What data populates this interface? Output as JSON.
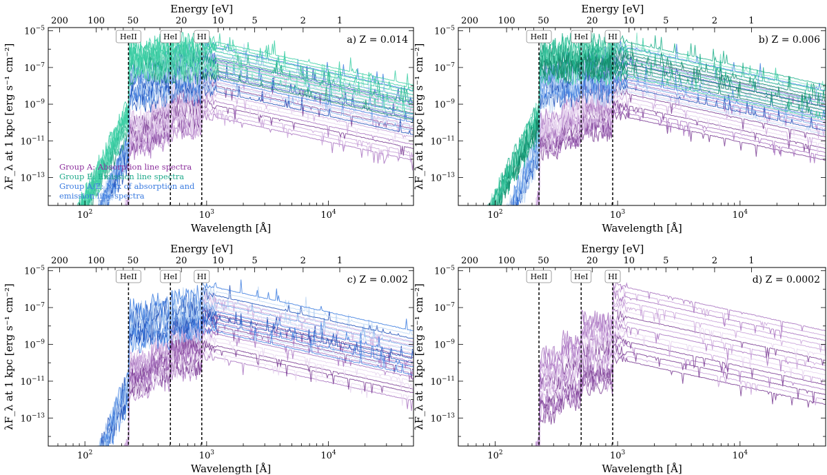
{
  "chart_data": [
    {
      "type": "line",
      "title": "a) Z = 0.014",
      "panel_label": "a) Z = 0.014",
      "xlabel": "Wavelength [Å]",
      "ylabel": "λF_λ at 1 kpc [erg s⁻¹ cm⁻²]",
      "top_xlabel": "Energy [eV]",
      "xscale": "log",
      "yscale": "log",
      "xlim": [
        50,
        50000
      ],
      "ylim": [
        3e-15,
        1.5e-05
      ],
      "groups": [
        "A",
        "AE",
        "E"
      ],
      "edge_lines": [
        {
          "label": "HeII",
          "x": 228
        },
        {
          "label": "HeI",
          "x": 504
        },
        {
          "label": "HI",
          "x": 912
        }
      ],
      "legend": [
        {
          "text": "Group A: Absorption line spectra",
          "color": "#8B2E9C"
        },
        {
          "text": "Group E: Emission line spectra",
          "color": "#1FA98A"
        },
        {
          "text": "Group A/E: Mix of absorption and emission line spectra",
          "color": "#3A7BE0"
        }
      ]
    },
    {
      "type": "line",
      "title": "b) Z = 0.006",
      "panel_label": "b) Z = 0.006",
      "xlabel": "Wavelength [Å]",
      "ylabel": "λF_λ at 1 kpc [erg s⁻¹ cm⁻²]",
      "top_xlabel": "Energy [eV]",
      "xscale": "log",
      "yscale": "log",
      "xlim": [
        50,
        50000
      ],
      "ylim": [
        3e-15,
        1.5e-05
      ],
      "groups": [
        "A",
        "AE",
        "E"
      ],
      "edge_lines": [
        {
          "label": "HeII",
          "x": 228
        },
        {
          "label": "HeI",
          "x": 504
        },
        {
          "label": "HI",
          "x": 912
        }
      ]
    },
    {
      "type": "line",
      "title": "c) Z = 0.002",
      "panel_label": "c) Z = 0.002",
      "xlabel": "Wavelength [Å]",
      "ylabel": "λF_λ at 1 kpc [erg s⁻¹ cm⁻²]",
      "top_xlabel": "Energy [eV]",
      "xscale": "log",
      "yscale": "log",
      "xlim": [
        50,
        50000
      ],
      "ylim": [
        3e-15,
        1.5e-05
      ],
      "groups": [
        "A",
        "AE"
      ],
      "edge_lines": [
        {
          "label": "HeII",
          "x": 228
        },
        {
          "label": "HeI",
          "x": 504
        },
        {
          "label": "HI",
          "x": 912
        }
      ]
    },
    {
      "type": "line",
      "title": "d) Z = 0.0002",
      "panel_label": "d) Z = 0.0002",
      "xlabel": "Wavelength [Å]",
      "ylabel": "λF_λ at 1 kpc [erg s⁻¹ cm⁻²]",
      "top_xlabel": "Energy [eV]",
      "xscale": "log",
      "yscale": "log",
      "xlim": [
        50,
        50000
      ],
      "ylim": [
        3e-15,
        1.5e-05
      ],
      "groups": [
        "A"
      ],
      "edge_lines": [
        {
          "label": "HeII",
          "x": 228
        },
        {
          "label": "HeI",
          "x": 504
        },
        {
          "label": "HI",
          "x": 912
        }
      ]
    }
  ],
  "axes": {
    "bottom_ticks": [
      {
        "value": 100,
        "mant": "10",
        "exp": "2"
      },
      {
        "value": 1000,
        "mant": "10",
        "exp": "3"
      },
      {
        "value": 10000,
        "mant": "10",
        "exp": "4"
      }
    ],
    "left_ticks": [
      {
        "value": 1e-05,
        "mant": "10",
        "exp": "−5"
      },
      {
        "value": 1e-07,
        "mant": "10",
        "exp": "−7"
      },
      {
        "value": 1e-09,
        "mant": "10",
        "exp": "−9"
      },
      {
        "value": 1e-11,
        "mant": "10",
        "exp": "−11"
      },
      {
        "value": 1e-13,
        "mant": "10",
        "exp": "−13"
      }
    ],
    "top_ticks_eV": [
      {
        "value": 200,
        "label": "200"
      },
      {
        "value": 100,
        "label": "100"
      },
      {
        "value": 50,
        "label": "50"
      },
      {
        "value": 20,
        "label": "20"
      },
      {
        "value": 10,
        "label": "10"
      },
      {
        "value": 5,
        "label": "5"
      },
      {
        "value": 2,
        "label": "2"
      },
      {
        "value": 1,
        "label": "1"
      }
    ]
  },
  "colors": {
    "A": [
      "#e6d3ee",
      "#c9a2d9",
      "#a872c0",
      "#7a3c93"
    ],
    "AE": [
      "#bcd6f5",
      "#7aaae9",
      "#3f7fe0",
      "#1f4fb8"
    ],
    "E": [
      "#7fe0c4",
      "#3ccfa4",
      "#1fb08a",
      "#148a6a"
    ]
  }
}
